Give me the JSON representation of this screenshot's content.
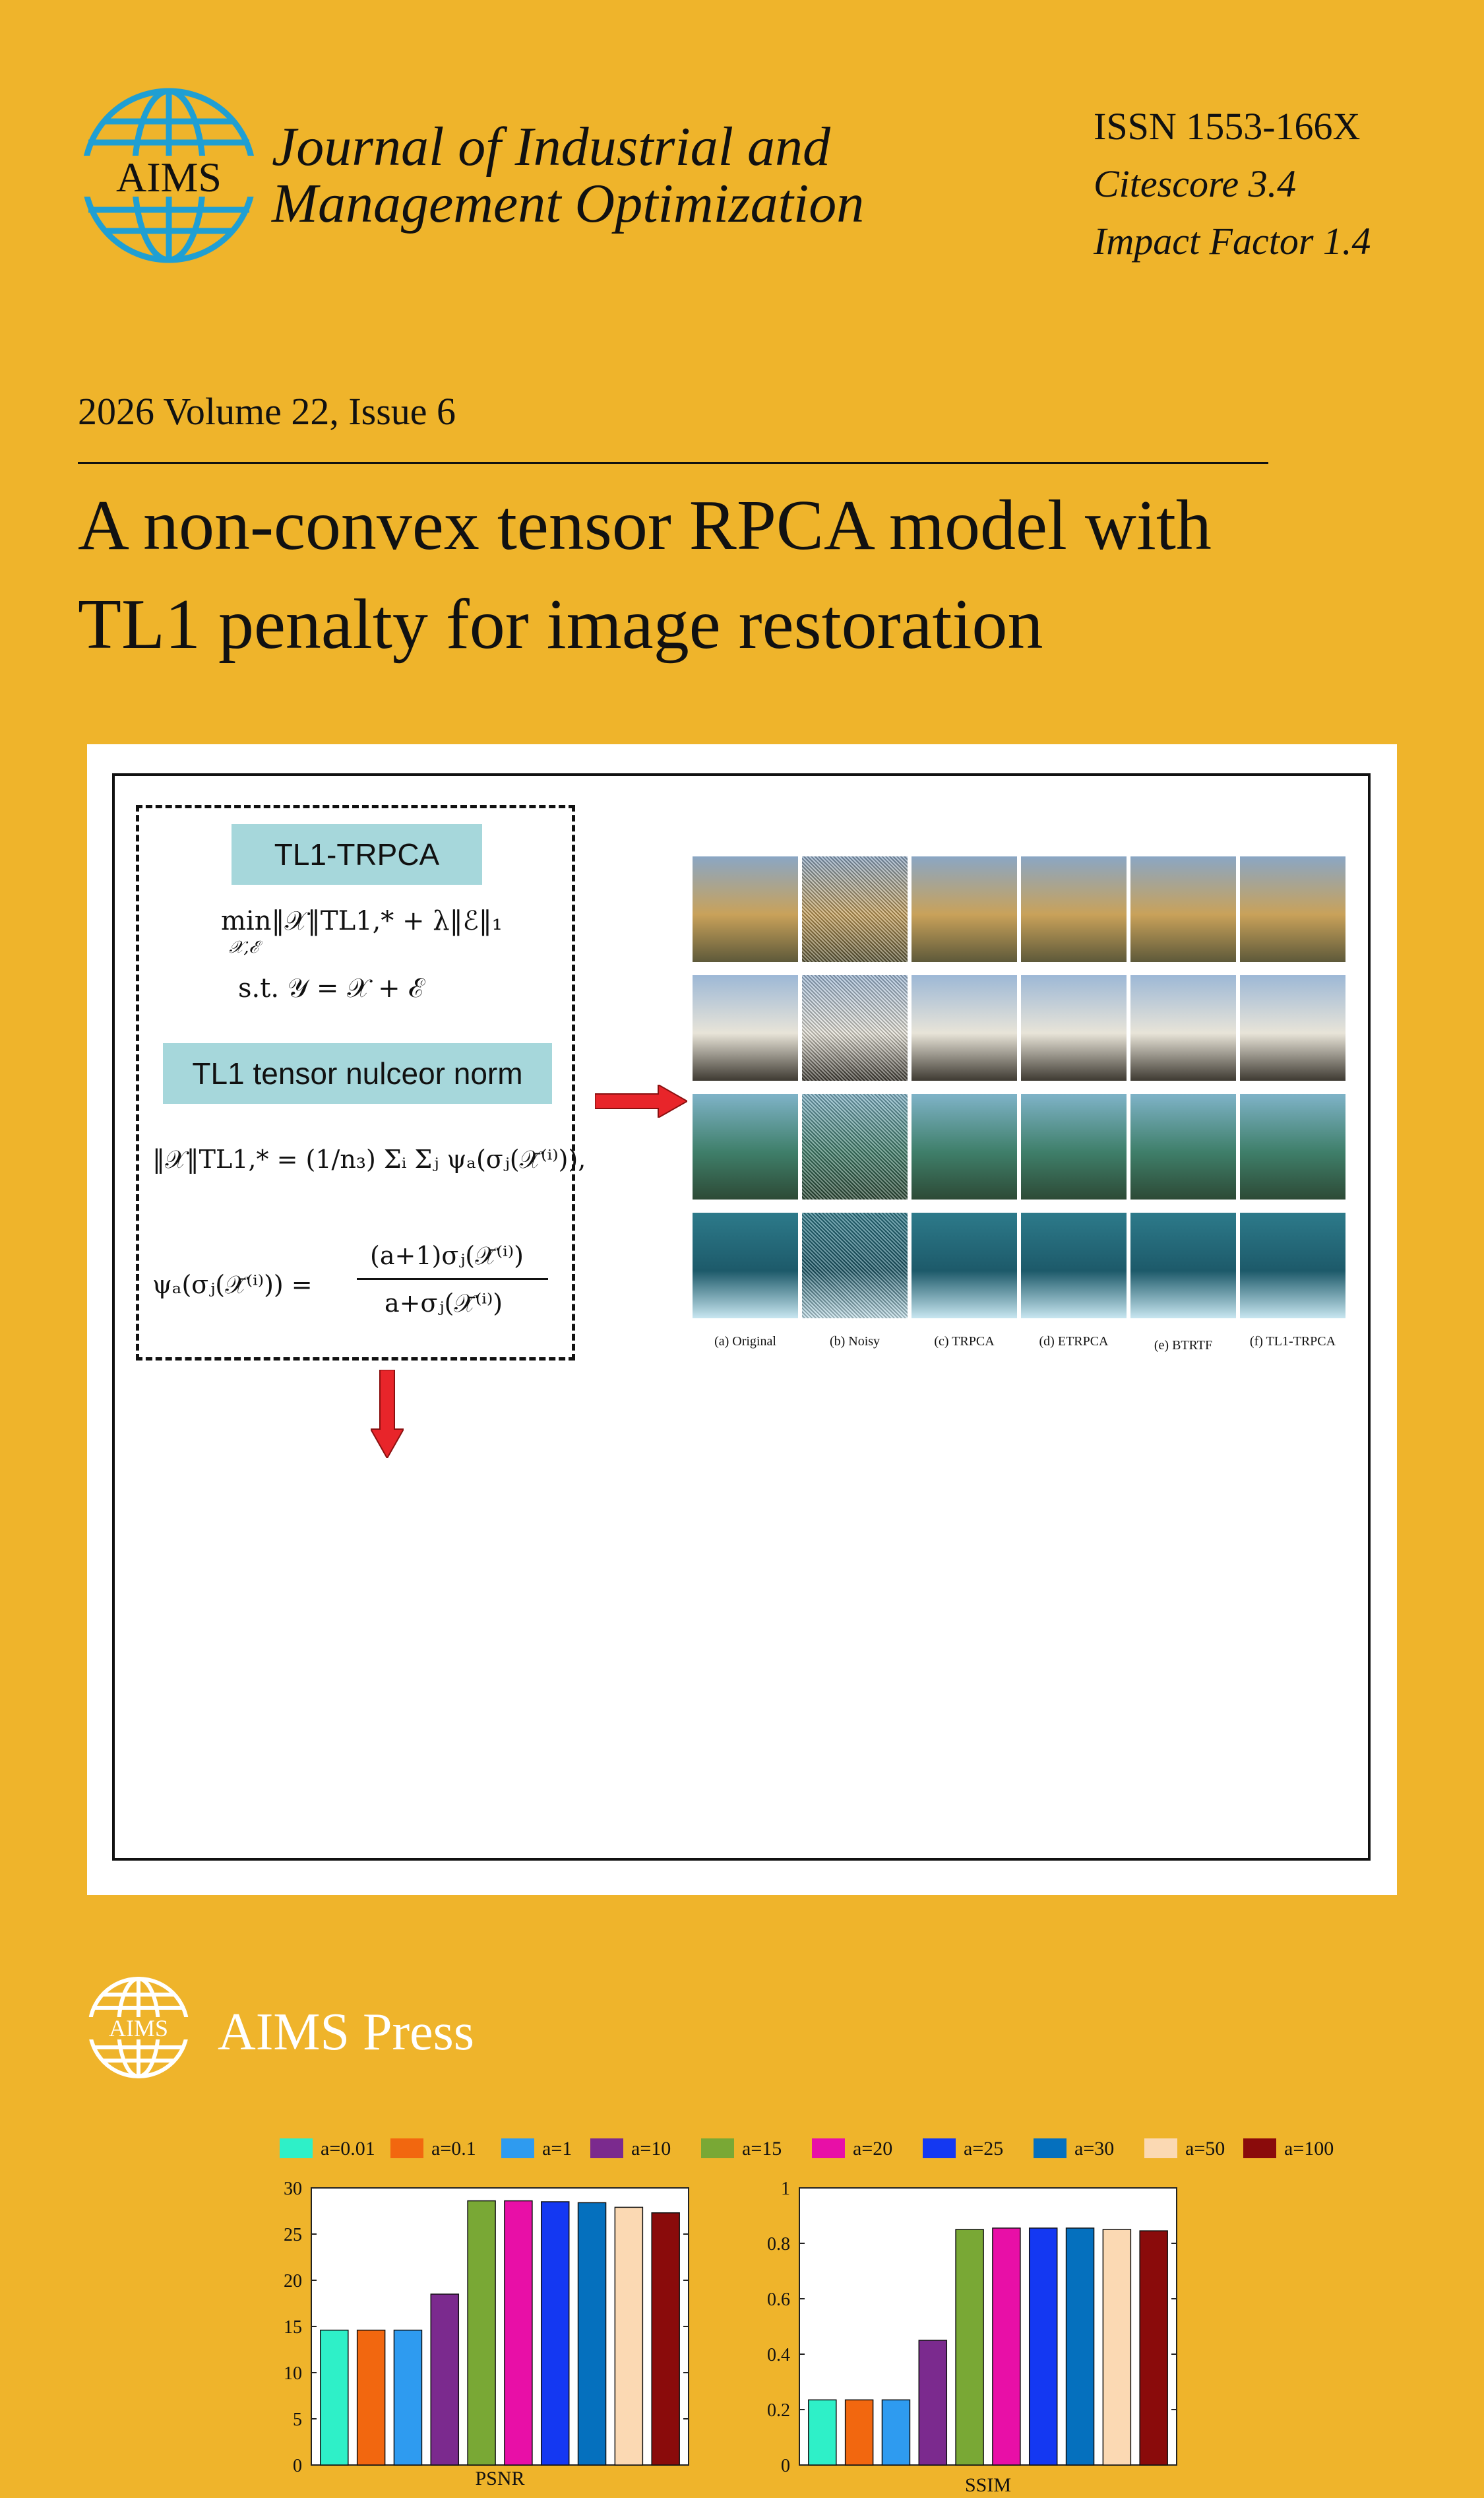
{
  "header": {
    "logo_text": "AIMS",
    "journal_line1": "Journal of Industrial and",
    "journal_line2": "Management Optimization",
    "issn": "ISSN 1553-166X",
    "citescore": "Citescore 3.4",
    "impact_factor": "Impact Factor 1.4"
  },
  "issue": "2026 Volume 22, Issue 6",
  "article": {
    "title_line1": "A non-convex tensor RPCA model with",
    "title_line2": "TL1 penalty for image restoration"
  },
  "figure": {
    "model_label": "TL1-TRPCA",
    "norm_label": "TL1 tensor nulceor norm",
    "eq_min": "min‖𝒳‖TL1,* + λ‖ℰ‖₁",
    "eq_min_sub": "𝒳,ℰ",
    "eq_st": "s.t. 𝒴 = 𝒳 + ℰ",
    "eq_norm": "‖𝒳‖TL1,* = (1/n₃) Σᵢ Σⱼ ψₐ(σⱼ(𝒳̄⁽ⁱ⁾)),",
    "eq_psi_left": "ψₐ(σⱼ(𝒳̄⁽ⁱ⁾)) =",
    "eq_psi_num": "(a+1)σⱼ(𝒳̄⁽ⁱ⁾)",
    "eq_psi_den": "a+σⱼ(𝒳̄⁽ⁱ⁾)",
    "column_captions": [
      "(a) Original",
      "(b) Noisy",
      "(c) TRPCA",
      "(d) ETRPCA",
      "(e) BTRTF",
      "(f) TL1-TRPCA"
    ]
  },
  "colors": {
    "background": "#EFB42B",
    "teal_label": "#A6D7DB",
    "arrow_red": "#E8252A"
  },
  "chart_data": [
    {
      "type": "bar",
      "xlabel": "PSNR",
      "ylim": [
        0,
        30
      ],
      "yticks": [
        0,
        5,
        10,
        15,
        20,
        25,
        30
      ],
      "legend_position": "top",
      "series": [
        {
          "name": "a=0.01",
          "value": 14.6,
          "color": "#2EF0C8"
        },
        {
          "name": "a=0.1",
          "value": 14.6,
          "color": "#F2670F"
        },
        {
          "name": "a=1",
          "value": 14.6,
          "color": "#2E9BF0"
        },
        {
          "name": "a=10",
          "value": 18.5,
          "color": "#7B2A8E"
        },
        {
          "name": "a=15",
          "value": 28.6,
          "color": "#79A835"
        },
        {
          "name": "a=20",
          "value": 28.6,
          "color": "#E80FA7"
        },
        {
          "name": "a=25",
          "value": 28.5,
          "color": "#1438F2"
        },
        {
          "name": "a=30",
          "value": 28.4,
          "color": "#0570BE"
        },
        {
          "name": "a=50",
          "value": 27.9,
          "color": "#FBD9B3"
        },
        {
          "name": "a=100",
          "value": 27.3,
          "color": "#8A0B0B"
        }
      ]
    },
    {
      "type": "bar",
      "xlabel": "SSIM",
      "ylim": [
        0,
        1
      ],
      "yticks": [
        0,
        0.2,
        0.4,
        0.6,
        0.8,
        1
      ],
      "series": [
        {
          "name": "a=0.01",
          "value": 0.235,
          "color": "#2EF0C8"
        },
        {
          "name": "a=0.1",
          "value": 0.235,
          "color": "#F2670F"
        },
        {
          "name": "a=1",
          "value": 0.235,
          "color": "#2E9BF0"
        },
        {
          "name": "a=10",
          "value": 0.45,
          "color": "#7B2A8E"
        },
        {
          "name": "a=15",
          "value": 0.85,
          "color": "#79A835"
        },
        {
          "name": "a=20",
          "value": 0.855,
          "color": "#E80FA7"
        },
        {
          "name": "a=25",
          "value": 0.855,
          "color": "#1438F2"
        },
        {
          "name": "a=30",
          "value": 0.855,
          "color": "#0570BE"
        },
        {
          "name": "a=50",
          "value": 0.85,
          "color": "#FBD9B3"
        },
        {
          "name": "a=100",
          "value": 0.845,
          "color": "#8A0B0B"
        }
      ]
    }
  ],
  "footer": {
    "logo_text": "AIMS",
    "press_name": "AIMS Press"
  }
}
